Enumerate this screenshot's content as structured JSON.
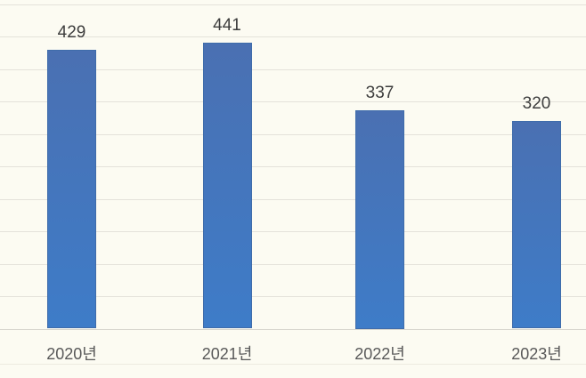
{
  "chart_data": {
    "type": "bar",
    "categories": [
      "2020년",
      "2021년",
      "2022년",
      "2023년"
    ],
    "values": [
      429,
      441,
      337,
      320
    ],
    "title": "",
    "xlabel": "",
    "ylabel": "",
    "ylim": [
      0,
      500
    ],
    "gridline_step": 50,
    "grid": true,
    "legend": false,
    "data_labels": true,
    "bar_color": "gradient-blue"
  },
  "colors": {
    "background": "#fcfbf2",
    "gridline": "#e4e2da",
    "baseline": "#d8d6ce",
    "faint_line": "#edebe0",
    "bar_top": "#4a70b2",
    "bar_bottom": "#3e7cc8",
    "bar_border": "#3f6caa",
    "value_label": "#3d3d3d",
    "axis_label": "#595959"
  }
}
